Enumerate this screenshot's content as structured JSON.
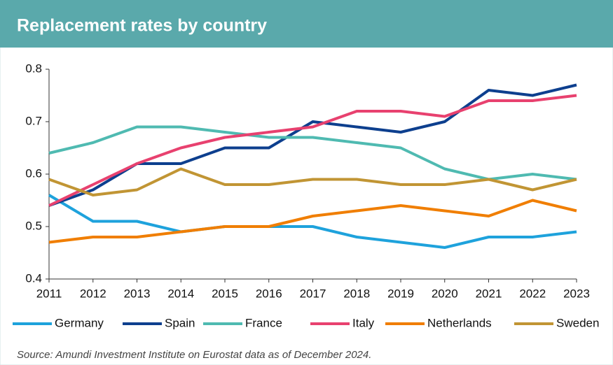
{
  "chart_data": {
    "type": "line",
    "title": "Replacement rates by country",
    "categories": [
      "2011",
      "2012",
      "2013",
      "2014",
      "2015",
      "2016",
      "2017",
      "2018",
      "2019",
      "2020",
      "2021",
      "2022",
      "2023"
    ],
    "series": [
      {
        "name": "Germany",
        "color": "#1ea2dc",
        "values": [
          0.56,
          0.51,
          0.51,
          0.49,
          0.5,
          0.5,
          0.5,
          0.48,
          0.47,
          0.46,
          0.48,
          0.48,
          0.49
        ]
      },
      {
        "name": "Spain",
        "color": "#0d3f8e",
        "values": [
          0.54,
          0.57,
          0.62,
          0.62,
          0.65,
          0.65,
          0.7,
          0.69,
          0.68,
          0.7,
          0.76,
          0.75,
          0.77
        ]
      },
      {
        "name": "France",
        "color": "#4fbab1",
        "values": [
          0.64,
          0.66,
          0.69,
          0.69,
          0.68,
          0.67,
          0.67,
          0.66,
          0.65,
          0.61,
          0.59,
          0.6,
          0.59
        ]
      },
      {
        "name": "Italy",
        "color": "#e8416f",
        "values": [
          0.54,
          0.58,
          0.62,
          0.65,
          0.67,
          0.68,
          0.69,
          0.72,
          0.72,
          0.71,
          0.74,
          0.74,
          0.75
        ]
      },
      {
        "name": "Netherlands",
        "color": "#f07e00",
        "values": [
          0.47,
          0.48,
          0.48,
          0.49,
          0.5,
          0.5,
          0.52,
          0.53,
          0.54,
          0.53,
          0.52,
          0.55,
          0.53
        ]
      },
      {
        "name": "Sweden",
        "color": "#c19534",
        "values": [
          0.59,
          0.56,
          0.57,
          0.61,
          0.58,
          0.58,
          0.59,
          0.59,
          0.58,
          0.58,
          0.59,
          0.57,
          0.59
        ]
      }
    ],
    "ylim": [
      0.4,
      0.8
    ],
    "yticks": [
      0.4,
      0.5,
      0.6,
      0.7,
      0.8
    ],
    "grid": false,
    "legend": "bottom",
    "source": "Source: Amundi Investment Institute on Eurostat data as of December 2024."
  }
}
